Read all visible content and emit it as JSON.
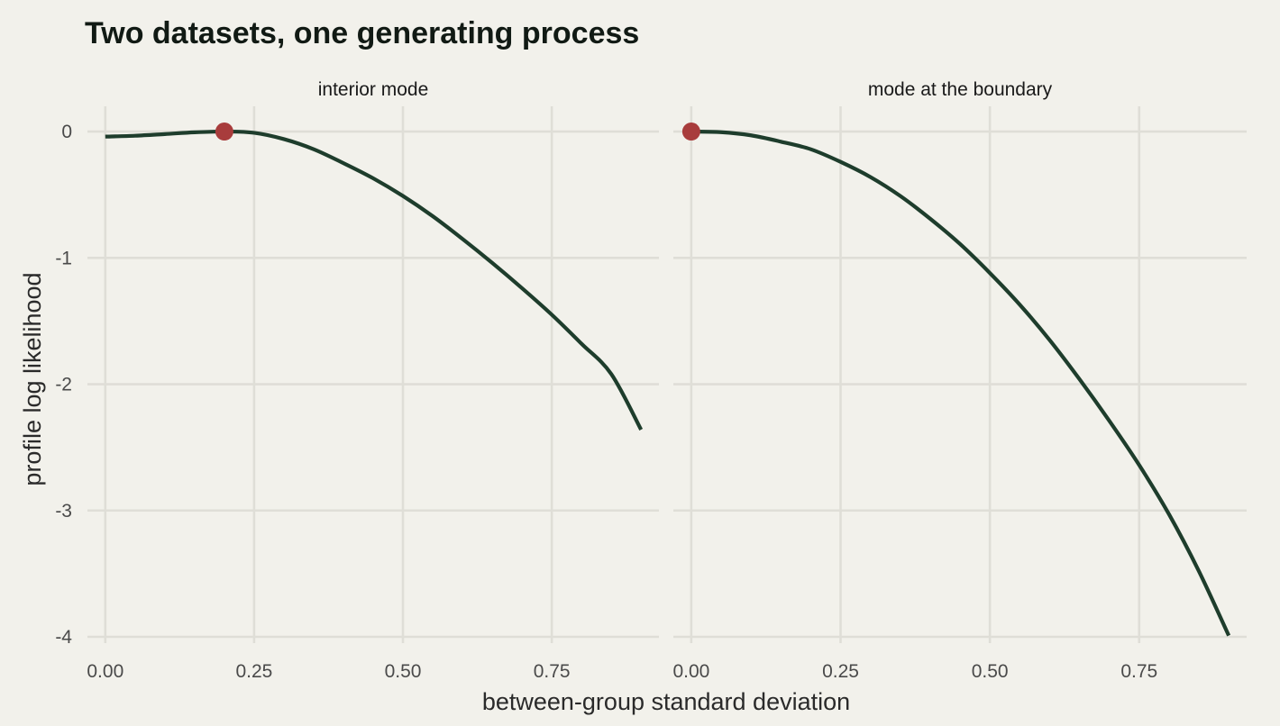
{
  "chart_data": {
    "type": "line",
    "title": "Two datasets, one generating process",
    "xlabel": "between-group standard deviation",
    "ylabel": "profile log likelihood",
    "xlim": [
      -0.03,
      0.93
    ],
    "ylim": [
      -4.05,
      0.2
    ],
    "x_ticks": [
      0,
      0.25,
      0.5,
      0.75
    ],
    "x_tick_labels": [
      "0.00",
      "0.25",
      "0.50",
      "0.75"
    ],
    "y_ticks": [
      0,
      -1,
      -2,
      -3,
      -4
    ],
    "y_tick_labels": [
      "0",
      "-1",
      "-2",
      "-3",
      "-4"
    ],
    "grid": true,
    "legend": "none",
    "colors": {
      "background": "#f2f1eb",
      "line": "#1e3d2c",
      "mode_point": "#a83c3c",
      "grid": "#dfded7"
    },
    "panels": [
      {
        "label": "interior mode",
        "mode": {
          "x": 0.2,
          "y": 0
        },
        "series": {
          "x": [
            0,
            0.05,
            0.1,
            0.15,
            0.2,
            0.25,
            0.3,
            0.35,
            0.4,
            0.45,
            0.5,
            0.55,
            0.6,
            0.65,
            0.7,
            0.75,
            0.8,
            0.85,
            0.9
          ],
          "y": [
            -0.04,
            -0.033,
            -0.02,
            -0.006,
            0,
            -0.01,
            -0.06,
            -0.14,
            -0.25,
            -0.37,
            -0.51,
            -0.67,
            -0.85,
            -1.04,
            -1.24,
            -1.45,
            -1.68,
            -1.92,
            -2.36
          ]
        }
      },
      {
        "label": "mode at the boundary",
        "mode": {
          "x": 0,
          "y": 0
        },
        "series": {
          "x": [
            0,
            0.05,
            0.1,
            0.15,
            0.2,
            0.25,
            0.3,
            0.35,
            0.4,
            0.45,
            0.5,
            0.55,
            0.6,
            0.65,
            0.7,
            0.75,
            0.8,
            0.85,
            0.9
          ],
          "y": [
            0,
            -0.005,
            -0.03,
            -0.08,
            -0.14,
            -0.24,
            -0.36,
            -0.51,
            -0.69,
            -0.89,
            -1.12,
            -1.37,
            -1.65,
            -1.96,
            -2.29,
            -2.64,
            -3.03,
            -3.48,
            -3.99
          ]
        }
      }
    ]
  }
}
